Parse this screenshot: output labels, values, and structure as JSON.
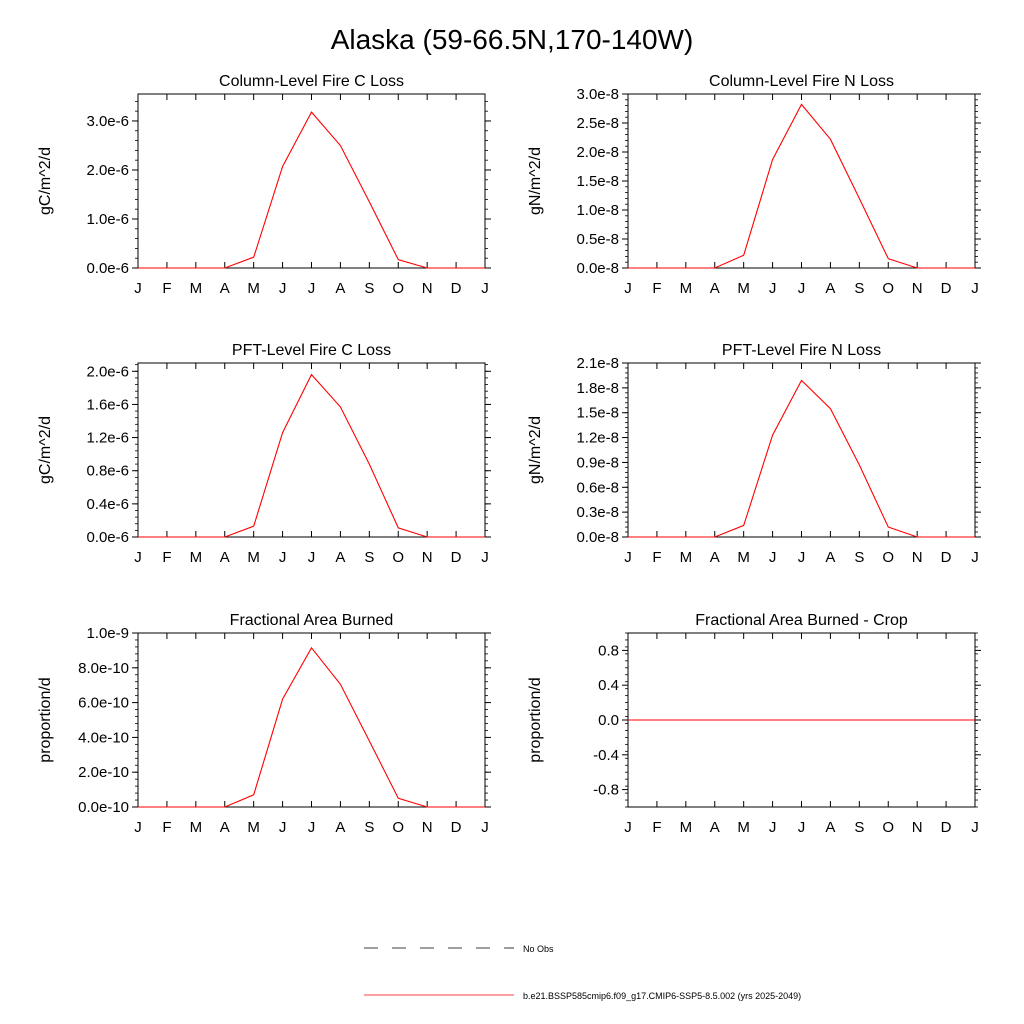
{
  "figure": {
    "title": "Alaska (59-66.5N,170-140W)"
  },
  "colors": {
    "series": "#ff0000",
    "axis": "#000000",
    "obs_line": "#000000"
  },
  "legend": {
    "items": [
      {
        "label": "No Obs",
        "style": "dashed",
        "color": "#000000"
      },
      {
        "label": "b.e21.BSSP585cmip6.f09_g17.CMIP6-SSP5-8.5.002 (yrs 2025-2049)",
        "style": "solid",
        "color": "#ff0000"
      }
    ]
  },
  "chart_data": [
    {
      "type": "line",
      "title": "Column-Level Fire C Loss",
      "xlabel": "",
      "ylabel": "gC/m^2/d",
      "x_ticks": [
        "J",
        "F",
        "M",
        "A",
        "M",
        "J",
        "J",
        "A",
        "S",
        "O",
        "N",
        "D",
        "J"
      ],
      "y_ticks": [
        "0.0e-6",
        "1.0e-6",
        "2.0e-6",
        "3.0e-6"
      ],
      "y_tick_values": [
        0,
        1e-06,
        2e-06,
        3e-06
      ],
      "ylim": [
        0,
        3.55e-06
      ],
      "series": [
        {
          "values": [
            0,
            0,
            0,
            0,
            2.2e-07,
            2.07e-06,
            3.18e-06,
            2.5e-06,
            1.35e-06,
            1.7e-07,
            0,
            0,
            0
          ]
        }
      ]
    },
    {
      "type": "line",
      "title": "Column-Level Fire N Loss",
      "xlabel": "",
      "ylabel": "gN/m^2/d",
      "x_ticks": [
        "J",
        "F",
        "M",
        "A",
        "M",
        "J",
        "J",
        "A",
        "S",
        "O",
        "N",
        "D",
        "J"
      ],
      "y_ticks": [
        "0.0e-8",
        "0.5e-8",
        "1.0e-8",
        "1.5e-8",
        "2.0e-8",
        "2.5e-8",
        "3.0e-8"
      ],
      "y_tick_values": [
        0,
        5e-09,
        1e-08,
        1.5e-08,
        2e-08,
        2.5e-08,
        3e-08
      ],
      "ylim": [
        0,
        3e-08
      ],
      "series": [
        {
          "values": [
            0,
            0,
            0,
            0,
            2.2e-09,
            1.87e-08,
            2.82e-08,
            2.22e-08,
            1.2e-08,
            1.6e-09,
            0,
            0,
            0
          ]
        }
      ]
    },
    {
      "type": "line",
      "title": "PFT-Level Fire C Loss",
      "xlabel": "",
      "ylabel": "gC/m^2/d",
      "x_ticks": [
        "J",
        "F",
        "M",
        "A",
        "M",
        "J",
        "J",
        "A",
        "S",
        "O",
        "N",
        "D",
        "J"
      ],
      "y_ticks": [
        "0.0e-6",
        "0.4e-6",
        "0.8e-6",
        "1.2e-6",
        "1.6e-6",
        "2.0e-6"
      ],
      "y_tick_values": [
        0,
        4e-07,
        8e-07,
        1.2e-06,
        1.6e-06,
        2e-06
      ],
      "ylim": [
        0,
        2.1e-06
      ],
      "series": [
        {
          "values": [
            0,
            0,
            0,
            0,
            1.3e-07,
            1.26e-06,
            1.96e-06,
            1.57e-06,
            8.8e-07,
            1.1e-07,
            0,
            0,
            0
          ]
        }
      ]
    },
    {
      "type": "line",
      "title": "PFT-Level Fire N Loss",
      "xlabel": "",
      "ylabel": "gN/m^2/d",
      "x_ticks": [
        "J",
        "F",
        "M",
        "A",
        "M",
        "J",
        "J",
        "A",
        "S",
        "O",
        "N",
        "D",
        "J"
      ],
      "y_ticks": [
        "0.0e-8",
        "0.3e-8",
        "0.6e-8",
        "0.9e-8",
        "1.2e-8",
        "1.5e-8",
        "1.8e-8",
        "2.1e-8"
      ],
      "y_tick_values": [
        0,
        3e-09,
        6e-09,
        9e-09,
        1.2e-08,
        1.5e-08,
        1.8e-08,
        2.1e-08
      ],
      "ylim": [
        0,
        2.1e-08
      ],
      "series": [
        {
          "values": [
            0,
            0,
            0,
            0,
            1.4e-09,
            1.23e-08,
            1.89e-08,
            1.55e-08,
            8.7e-09,
            1.2e-09,
            0,
            0,
            0
          ]
        }
      ]
    },
    {
      "type": "line",
      "title": "Fractional Area Burned",
      "xlabel": "",
      "ylabel": "proportion/d",
      "x_ticks": [
        "J",
        "F",
        "M",
        "A",
        "M",
        "J",
        "J",
        "A",
        "S",
        "O",
        "N",
        "D",
        "J"
      ],
      "y_ticks": [
        "0.0e-10",
        "2.0e-10",
        "4.0e-10",
        "6.0e-10",
        "8.0e-10",
        "1.0e-9"
      ],
      "y_tick_values": [
        0,
        2e-10,
        4e-10,
        6e-10,
        8e-10,
        1e-09
      ],
      "ylim": [
        0,
        1e-09
      ],
      "series": [
        {
          "values": [
            0,
            0,
            0,
            0,
            7e-11,
            6.2e-10,
            9.15e-10,
            7.05e-10,
            3.8e-10,
            5e-11,
            0,
            0,
            0
          ]
        }
      ]
    },
    {
      "type": "line",
      "title": "Fractional Area Burned - Crop",
      "xlabel": "",
      "ylabel": "proportion/d",
      "x_ticks": [
        "J",
        "F",
        "M",
        "A",
        "M",
        "J",
        "J",
        "A",
        "S",
        "O",
        "N",
        "D",
        "J"
      ],
      "y_ticks": [
        "-0.8",
        "-0.4",
        "0.0",
        "0.4",
        "0.8"
      ],
      "y_tick_values": [
        -0.8,
        -0.4,
        0.0,
        0.4,
        0.8
      ],
      "ylim": [
        -1.0,
        1.0
      ],
      "series": [
        {
          "values": [
            0,
            0,
            0,
            0,
            0,
            0,
            0,
            0,
            0,
            0,
            0,
            0,
            0
          ]
        }
      ]
    }
  ]
}
